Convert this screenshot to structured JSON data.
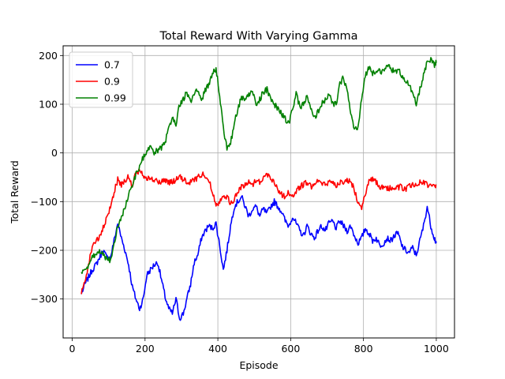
{
  "chart_data": {
    "type": "line",
    "title": "Total Reward With Varying Gamma",
    "xlabel": "Episode",
    "ylabel": "Total Reward",
    "xlim": [
      -25,
      1050
    ],
    "ylim": [
      -380,
      220
    ],
    "xticks": [
      0,
      200,
      400,
      600,
      800,
      1000
    ],
    "yticks": [
      -300,
      -200,
      -100,
      0,
      100,
      200
    ],
    "grid": true,
    "legend_position": "top-left",
    "series": [
      {
        "name": "0.7",
        "color": "#0000ff",
        "x": [
          25,
          35,
          45,
          55,
          65,
          75,
          85,
          95,
          105,
          115,
          125,
          135,
          145,
          155,
          165,
          175,
          185,
          195,
          205,
          215,
          225,
          235,
          245,
          255,
          265,
          275,
          285,
          295,
          305,
          315,
          325,
          335,
          345,
          355,
          365,
          375,
          385,
          395,
          405,
          415,
          425,
          435,
          445,
          455,
          465,
          475,
          485,
          495,
          505,
          515,
          525,
          535,
          545,
          555,
          565,
          575,
          585,
          595,
          605,
          615,
          625,
          635,
          645,
          655,
          665,
          675,
          685,
          695,
          705,
          715,
          725,
          735,
          745,
          755,
          765,
          775,
          785,
          795,
          805,
          815,
          825,
          835,
          845,
          855,
          865,
          875,
          885,
          895,
          905,
          915,
          925,
          935,
          945,
          955,
          965,
          975,
          985,
          995,
          1000
        ],
        "y": [
          -290,
          -270,
          -255,
          -240,
          -230,
          -215,
          -200,
          -215,
          -215,
          -180,
          -145,
          -175,
          -200,
          -230,
          -275,
          -300,
          -320,
          -300,
          -250,
          -240,
          -230,
          -225,
          -260,
          -295,
          -320,
          -330,
          -300,
          -340,
          -330,
          -300,
          -270,
          -225,
          -210,
          -175,
          -160,
          -150,
          -155,
          -145,
          -190,
          -240,
          -200,
          -150,
          -110,
          -100,
          -90,
          -110,
          -130,
          -115,
          -110,
          -130,
          -115,
          -125,
          -110,
          -100,
          -110,
          -120,
          -140,
          -150,
          -130,
          -145,
          -160,
          -170,
          -150,
          -165,
          -175,
          -160,
          -150,
          -160,
          -145,
          -140,
          -155,
          -140,
          -150,
          -160,
          -150,
          -170,
          -185,
          -175,
          -155,
          -165,
          -180,
          -175,
          -190,
          -185,
          -175,
          -180,
          -170,
          -165,
          -190,
          -200,
          -205,
          -195,
          -210,
          -180,
          -150,
          -110,
          -150,
          -175,
          -185
        ],
        "smooth": 2.1
      },
      {
        "name": "0.9",
        "color": "#ff0000",
        "x": [
          25,
          35,
          45,
          55,
          65,
          75,
          85,
          95,
          105,
          115,
          125,
          135,
          145,
          155,
          165,
          175,
          185,
          195,
          205,
          215,
          225,
          235,
          245,
          255,
          265,
          275,
          285,
          295,
          305,
          315,
          325,
          335,
          345,
          355,
          365,
          375,
          385,
          395,
          405,
          415,
          425,
          435,
          445,
          455,
          465,
          475,
          485,
          495,
          505,
          515,
          525,
          535,
          545,
          555,
          565,
          575,
          585,
          595,
          605,
          615,
          625,
          635,
          645,
          655,
          665,
          675,
          685,
          695,
          705,
          715,
          725,
          735,
          745,
          755,
          765,
          775,
          785,
          795,
          805,
          815,
          825,
          835,
          845,
          855,
          865,
          875,
          885,
          895,
          905,
          915,
          925,
          935,
          945,
          955,
          965,
          975,
          985,
          995,
          1000
        ],
        "y": [
          -290,
          -260,
          -230,
          -190,
          -180,
          -175,
          -155,
          -135,
          -110,
          -80,
          -55,
          -65,
          -55,
          -50,
          -70,
          -40,
          -38,
          -45,
          -50,
          -55,
          -55,
          -60,
          -60,
          -55,
          -60,
          -60,
          -55,
          -50,
          -55,
          -60,
          -60,
          -55,
          -50,
          -45,
          -45,
          -55,
          -80,
          -105,
          -100,
          -85,
          -90,
          -105,
          -95,
          -80,
          -70,
          -65,
          -60,
          -65,
          -55,
          -60,
          -50,
          -45,
          -50,
          -60,
          -75,
          -85,
          -90,
          -80,
          -90,
          -80,
          -70,
          -65,
          -60,
          -70,
          -60,
          -55,
          -65,
          -65,
          -60,
          -60,
          -65,
          -60,
          -65,
          -55,
          -60,
          -75,
          -100,
          -110,
          -85,
          -60,
          -55,
          -60,
          -75,
          -70,
          -75,
          -70,
          -75,
          -70,
          -70,
          -75,
          -70,
          -65,
          -65,
          -60,
          -60,
          -65,
          -70,
          -70,
          -65
        ],
        "smooth": 2.1
      },
      {
        "name": "0.99",
        "color": "#008000",
        "x": [
          25,
          35,
          45,
          55,
          65,
          75,
          85,
          95,
          105,
          115,
          125,
          135,
          145,
          155,
          165,
          175,
          185,
          195,
          205,
          215,
          225,
          235,
          245,
          255,
          265,
          275,
          285,
          295,
          305,
          315,
          325,
          335,
          345,
          355,
          365,
          375,
          385,
          395,
          405,
          415,
          425,
          435,
          445,
          455,
          465,
          475,
          485,
          495,
          505,
          515,
          525,
          535,
          545,
          555,
          565,
          575,
          585,
          595,
          605,
          615,
          625,
          635,
          645,
          655,
          665,
          675,
          685,
          695,
          705,
          715,
          725,
          735,
          745,
          755,
          765,
          775,
          785,
          795,
          805,
          815,
          825,
          835,
          845,
          855,
          865,
          875,
          885,
          895,
          905,
          915,
          925,
          935,
          945,
          955,
          965,
          975,
          985,
          995,
          1000
        ],
        "y": [
          -245,
          -240,
          -235,
          -215,
          -210,
          -200,
          -205,
          -220,
          -220,
          -185,
          -150,
          -135,
          -110,
          -85,
          -65,
          -45,
          -30,
          -10,
          5,
          10,
          0,
          5,
          10,
          20,
          50,
          75,
          60,
          100,
          110,
          125,
          105,
          120,
          130,
          105,
          130,
          140,
          160,
          175,
          120,
          50,
          10,
          20,
          60,
          90,
          115,
          110,
          120,
          125,
          100,
          110,
          125,
          130,
          110,
          100,
          90,
          80,
          70,
          60,
          90,
          120,
          95,
          100,
          115,
          90,
          70,
          85,
          100,
          110,
          120,
          100,
          100,
          140,
          155,
          130,
          80,
          50,
          50,
          110,
          160,
          175,
          165,
          170,
          170,
          165,
          180,
          175,
          165,
          170,
          160,
          150,
          140,
          120,
          100,
          130,
          160,
          185,
          190,
          180,
          185
        ],
        "smooth": 2.1
      }
    ]
  }
}
